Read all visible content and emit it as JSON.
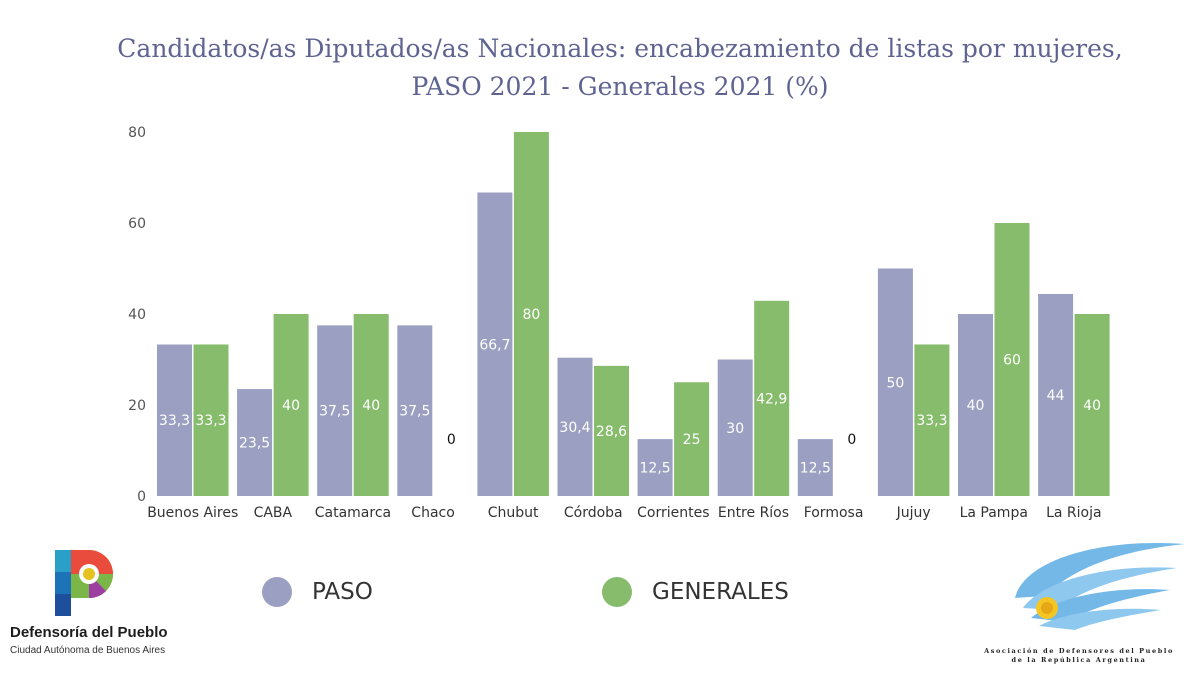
{
  "chart_data": {
    "type": "bar",
    "title": "Candidatos/as Diputados/as Nacionales: encabezamiento de listas por mujeres, PASO 2021 - Generales 2021 (%)",
    "xlabel": "",
    "ylabel": "",
    "ylim": [
      0,
      80
    ],
    "yticks": [
      0,
      20,
      40,
      60,
      80
    ],
    "grid": false,
    "legend_position": "bottom",
    "categories": [
      "Buenos Aires",
      "CABA",
      "Catamarca",
      "Chaco",
      "Chubut",
      "Córdoba",
      "Corrientes",
      "Entre Ríos",
      "Formosa",
      "Jujuy",
      "La Pampa",
      "La Rioja"
    ],
    "series": [
      {
        "name": "PASO",
        "color": "#9b9fc1",
        "values": [
          33.3,
          23.5,
          37.5,
          37.5,
          66.7,
          30.4,
          12.5,
          30,
          12.5,
          50,
          40,
          44.4
        ],
        "labels": [
          "33,3",
          "23,5",
          "37,5",
          "37,5",
          "66,7",
          "30,4",
          "12,5",
          "30",
          "12,5",
          "50",
          "40",
          "44"
        ]
      },
      {
        "name": "GENERALES",
        "color": "#86bc6c",
        "values": [
          33.3,
          40,
          40,
          0,
          80,
          28.6,
          25,
          42.9,
          0,
          33.3,
          60,
          40
        ],
        "labels": [
          "33,3",
          "40",
          "40",
          "0",
          "80",
          "28,6",
          "25",
          "42,9",
          "0",
          "33,3",
          "60",
          "40"
        ]
      }
    ]
  },
  "logos": {
    "left": {
      "name": "Defensoría del Pueblo",
      "subtitle": "Ciudad Autónoma de Buenos Aires",
      "icon": "defensoria-p-icon"
    },
    "right": {
      "line1": "Asociación de Defensores del Pueblo",
      "line2": "de la República Argentina",
      "icon": "adpra-flag-icon"
    }
  }
}
